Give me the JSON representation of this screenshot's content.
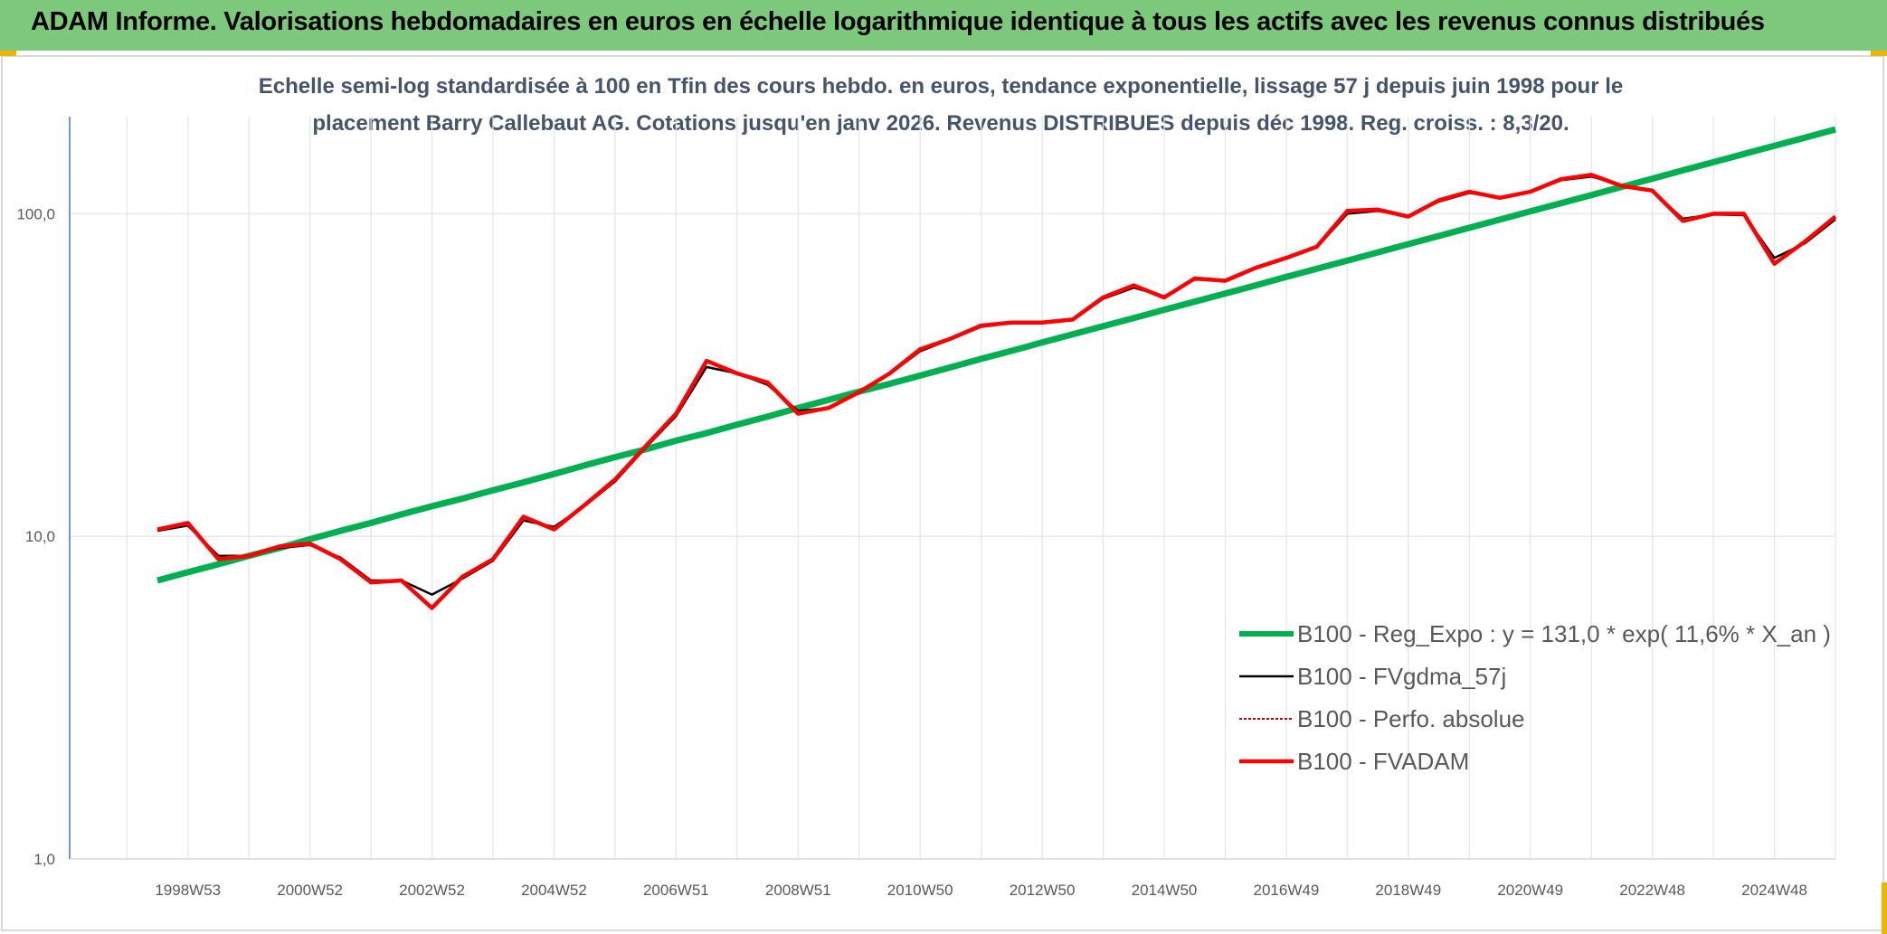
{
  "header": {
    "title": "ADAM Informe. Valorisations hebdomadaires en euros en échelle logarithmique identique à tous les actifs avec les revenus connus distribués"
  },
  "chart_data": {
    "type": "line",
    "subtitle": [
      "Echelle semi-log standardisée à 100 en Tfin des cours hebdo. en euros, tendance exponentielle, lissage 57 j depuis juin 1998 pour le",
      "placement Barry Callebaut AG. Cotations jusqu'en janv 2026. Revenus DISTRIBUES depuis déc 1998. Reg. croiss. : 8,3/20."
    ],
    "log_scale": true,
    "grid": true,
    "legend": "lower right",
    "ylim": [
      1,
      200
    ],
    "yticks": [
      {
        "value": 1,
        "label": "1,0"
      },
      {
        "value": 10,
        "label": "10,0"
      },
      {
        "value": 100,
        "label": "100,0"
      }
    ],
    "categories": [
      null,
      "1998W53",
      null,
      null,
      null,
      "2000W52",
      null,
      null,
      null,
      "2002W52",
      null,
      null,
      null,
      "2004W52",
      null,
      null,
      null,
      "2006W51",
      null,
      null,
      null,
      "2008W51",
      null,
      null,
      null,
      "2010W50",
      null,
      null,
      null,
      "2012W50",
      null,
      null,
      null,
      "2014W50",
      null,
      null,
      null,
      "2016W49",
      null,
      null,
      null,
      "2018W49",
      null,
      null,
      null,
      "2020W49",
      null,
      null,
      null,
      "2022W48",
      null,
      null,
      null,
      "2024W48",
      null,
      null
    ],
    "series": [
      {
        "name": "B100 - Reg_Expo : y = 131,0 * exp( 11,6% *  X_an )",
        "color": "#00b050",
        "style": "thick",
        "values": [
          7.3,
          7.74,
          8.2,
          8.7,
          9.2,
          9.8,
          10.4,
          11.0,
          11.7,
          12.4,
          13.1,
          13.9,
          14.7,
          15.6,
          16.6,
          17.6,
          18.6,
          19.8,
          20.9,
          22.2,
          23.5,
          25.0,
          26.5,
          28.1,
          29.7,
          31.5,
          33.4,
          35.5,
          37.6,
          39.9,
          42.3,
          44.8,
          47.5,
          50.4,
          53.4,
          56.6,
          60.0,
          63.7,
          67.5,
          71.6,
          75.9,
          80.5,
          85.3,
          90.5,
          95.9,
          101.7,
          107.8,
          114.3,
          121.2,
          128.5,
          136.3,
          144.5,
          153.2,
          162.4,
          172.2,
          182.6
        ]
      },
      {
        "name": "B100 - FVgdma_57j",
        "color": "#000000",
        "style": "thin",
        "values": [
          10.4,
          10.8,
          8.7,
          8.7,
          9.2,
          9.4,
          8.6,
          7.3,
          7.3,
          6.6,
          7.4,
          8.4,
          11.2,
          10.7,
          12.4,
          14.8,
          18.8,
          23.6,
          33.5,
          32.0,
          29.5,
          24.5,
          25.0,
          27.8,
          31.8,
          37.5,
          40.8,
          44.6,
          45.8,
          46.0,
          46.8,
          54.5,
          59.0,
          55.5,
          62.5,
          62.2,
          67.8,
          72.5,
          78.5,
          100.0,
          102.0,
          98.5,
          109.0,
          116.0,
          112.5,
          116.5,
          127.0,
          130.5,
          122.5,
          117.5,
          96.5,
          99.5,
          99.0,
          73.0,
          81.0,
          96.0
        ]
      },
      {
        "name": "B100 - Perfo. absolue",
        "color": "#c00000",
        "style": "dotted",
        "values": [
          10.5,
          11,
          8.5,
          8.7,
          9.3,
          9.5,
          8.5,
          7.2,
          7.3,
          6.0,
          7.5,
          8.5,
          11.5,
          10.5,
          12.5,
          15,
          19,
          24,
          35,
          32,
          30,
          24,
          25,
          28,
          32,
          38,
          41,
          45,
          46,
          46,
          47,
          55,
          60,
          55,
          63,
          62,
          68,
          73,
          79,
          102,
          103,
          98,
          110,
          117,
          112,
          117,
          128,
          132,
          122,
          118,
          95,
          100,
          100,
          70,
          82,
          98
        ]
      },
      {
        "name": "B100 - FVADAM",
        "color": "#ff0000",
        "style": "medium",
        "values": [
          10.5,
          11,
          8.5,
          8.7,
          9.3,
          9.5,
          8.5,
          7.2,
          7.3,
          6.0,
          7.5,
          8.5,
          11.5,
          10.5,
          12.5,
          15,
          19,
          24,
          35,
          32,
          30,
          24,
          25,
          28,
          32,
          38,
          41,
          45,
          46,
          46,
          47,
          55,
          60,
          55,
          63,
          62,
          68,
          73,
          79,
          102,
          103,
          98,
          110,
          117,
          112,
          117,
          128,
          132,
          122,
          118,
          95,
          100,
          100,
          70,
          82,
          98
        ]
      }
    ]
  }
}
